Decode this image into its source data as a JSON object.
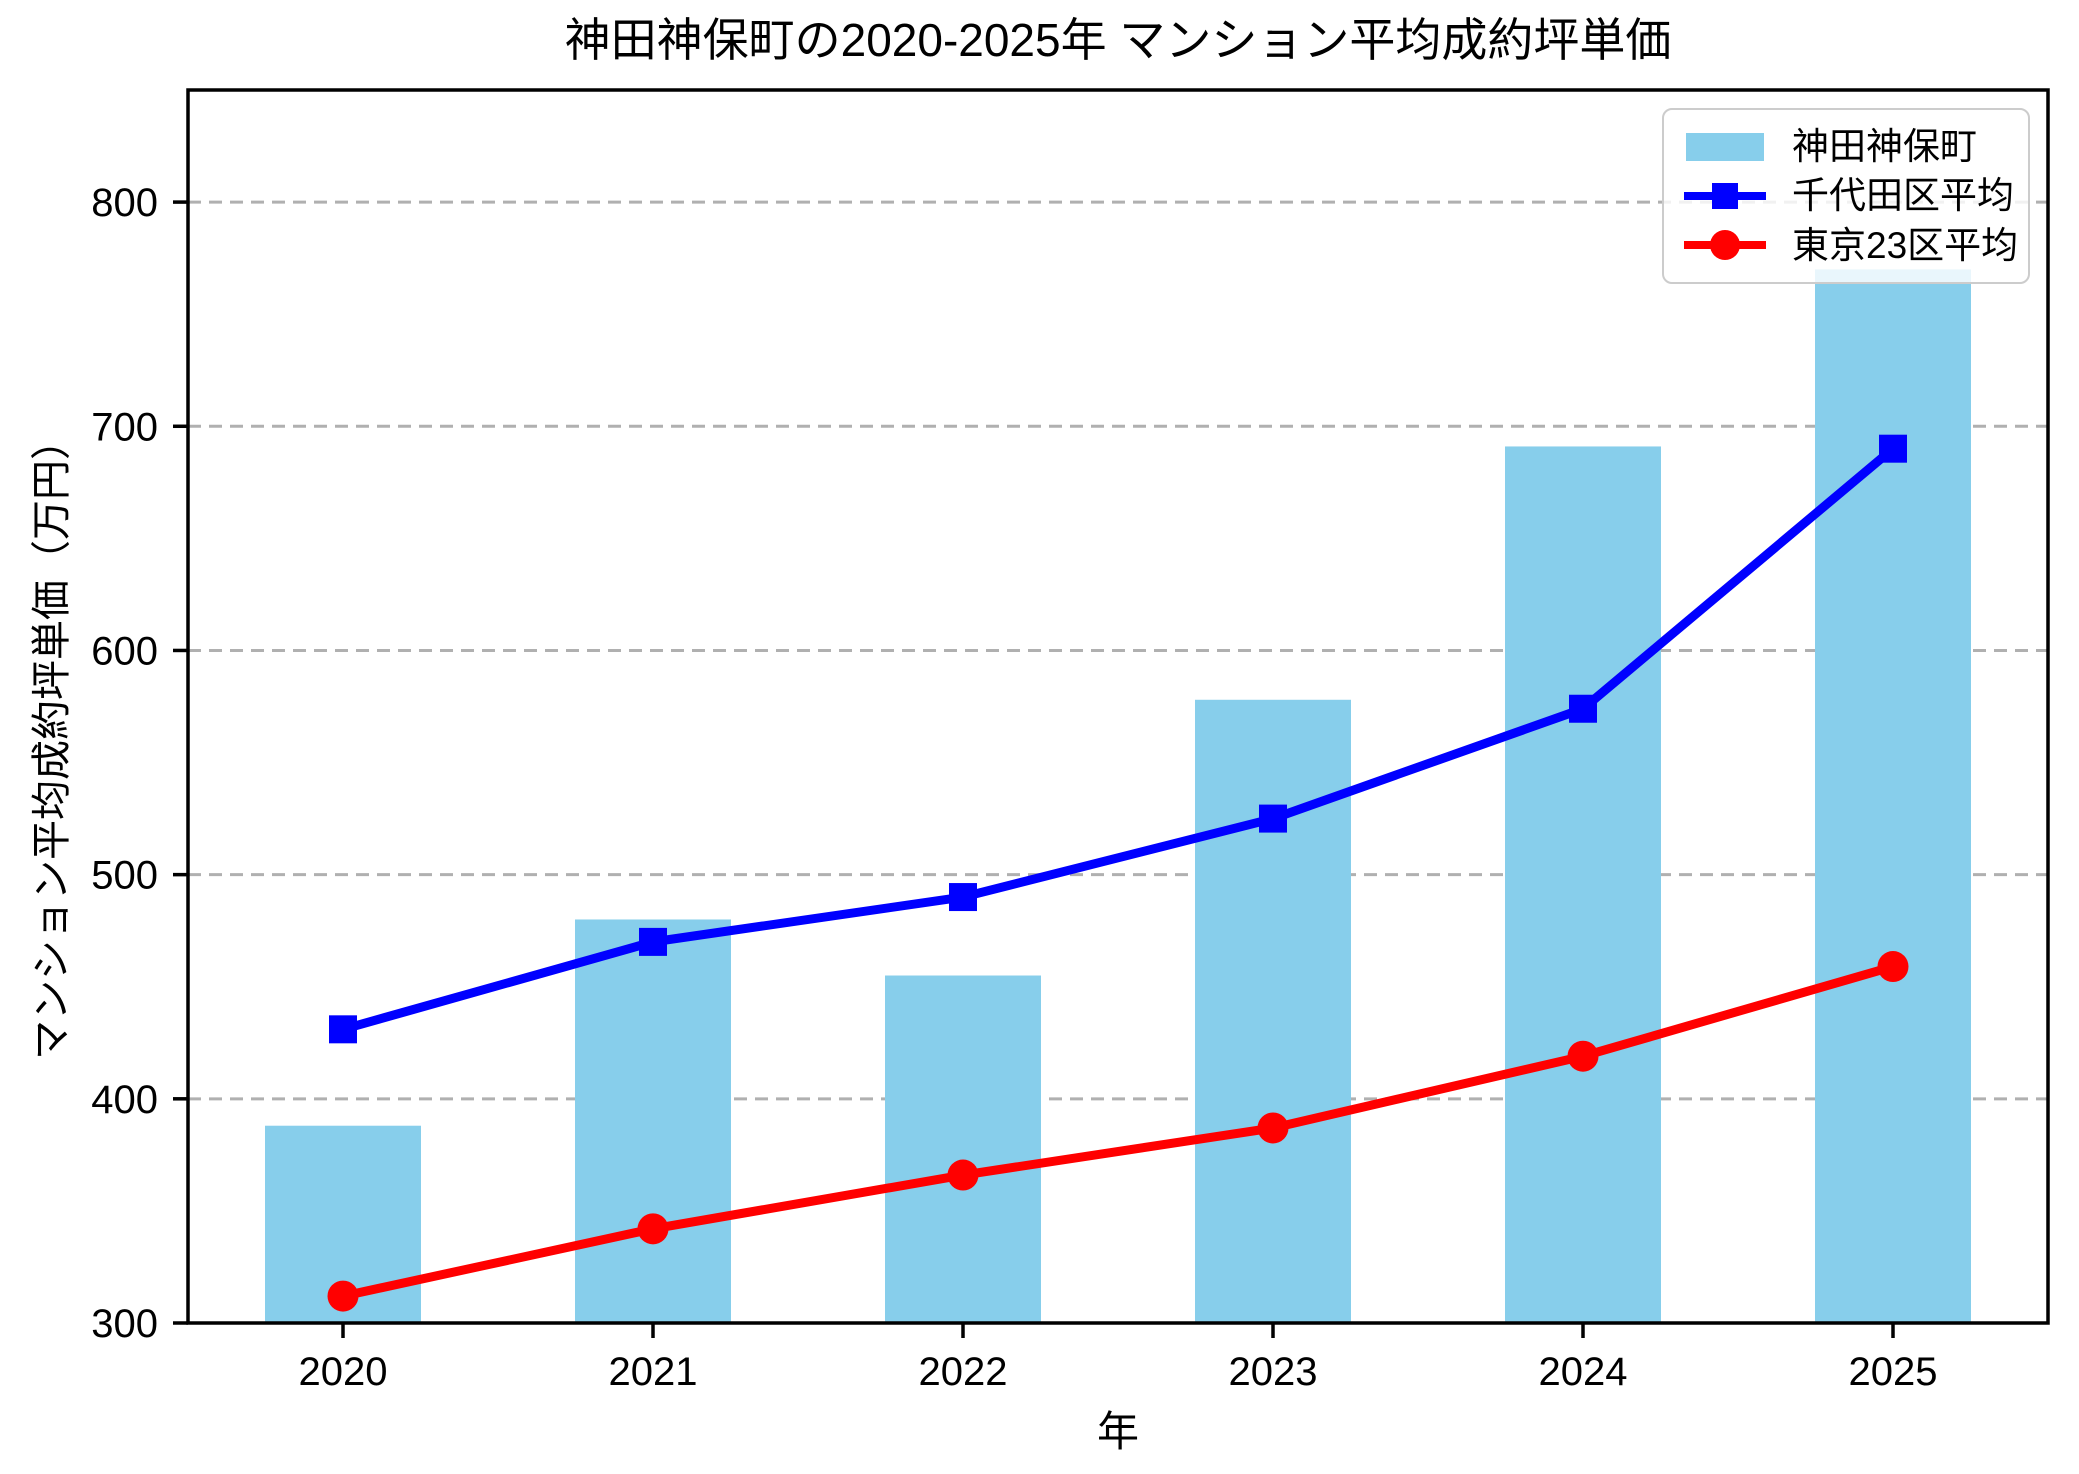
{
  "title": "神田神保町の2020-2025年 マンション平均成約坪単価",
  "chart_data": {
    "type": "bar",
    "categories": [
      "2020",
      "2021",
      "2022",
      "2023",
      "2024",
      "2025"
    ],
    "series": [
      {
        "name": "神田神保町",
        "type": "bar",
        "marker": "none",
        "color": "#87CEEB",
        "values": [
          388,
          480,
          455,
          578,
          691,
          770
        ]
      },
      {
        "name": "千代田区平均",
        "type": "line",
        "marker": "square",
        "color": "#0000FF",
        "values": [
          431,
          470,
          490,
          525,
          574,
          690
        ]
      },
      {
        "name": "東京23区平均",
        "type": "line",
        "marker": "circle",
        "color": "#FF0000",
        "values": [
          312,
          342,
          366,
          387,
          419,
          459
        ]
      }
    ],
    "xlabel": "年",
    "ylabel": "マンション平均成約坪単価（万円）",
    "ylim": [
      300,
      850
    ],
    "yticks": [
      300,
      400,
      500,
      600,
      700,
      800
    ],
    "grid": "horizontal dashed",
    "grid_color": "#b0b0b0",
    "axis_color": "#000000",
    "legend_position": "upper right"
  }
}
